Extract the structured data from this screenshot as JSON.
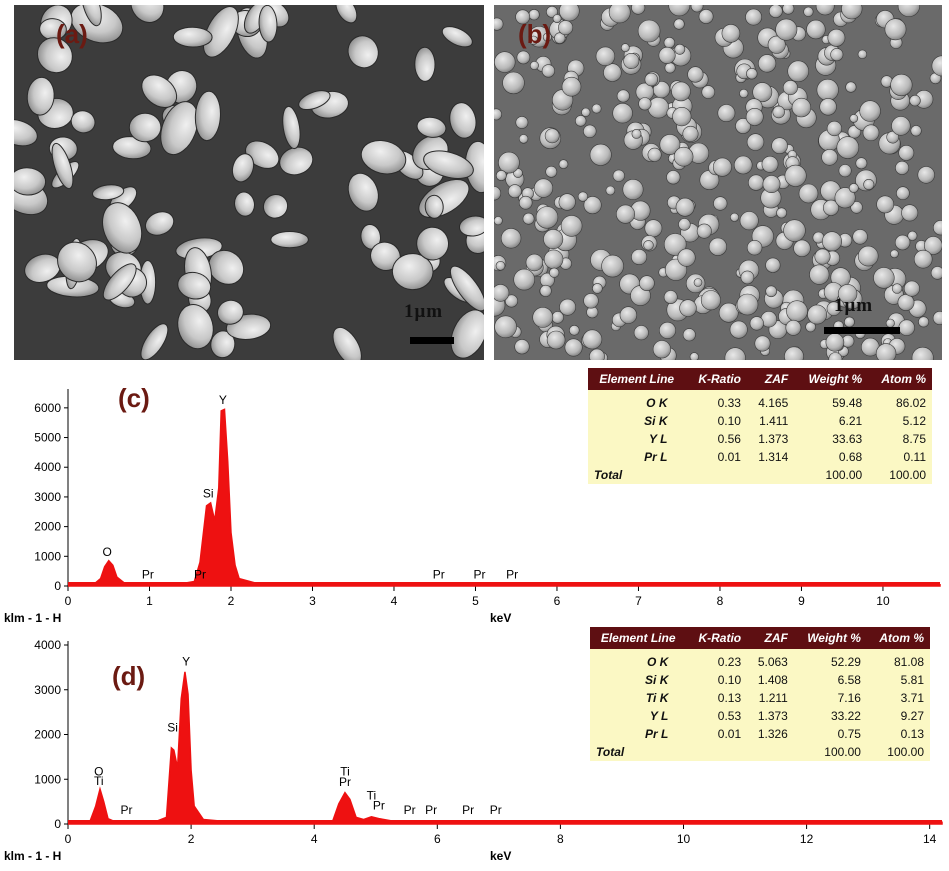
{
  "images": {
    "a": {
      "label": "(a)",
      "scalebar": "1μm"
    },
    "b": {
      "label": "(b)",
      "scalebar": "1μm"
    }
  },
  "colors": {
    "spectrum": "#ee1111",
    "panel_label": "#6b1a12",
    "table_header": "#5e0f12",
    "table_body": "#fbf8c4"
  },
  "chart_data": [
    {
      "type": "area",
      "panel": "(c)",
      "xlabel": "keV",
      "ylabel": "",
      "source_label": "klm - 1 - H",
      "xlim": [
        0,
        10.7
      ],
      "ylim": [
        0,
        6500
      ],
      "x_ticks": [
        0,
        1,
        2,
        3,
        4,
        5,
        6,
        7,
        8,
        9,
        10
      ],
      "y_ticks": [
        0,
        1000,
        2000,
        3000,
        4000,
        5000,
        6000
      ],
      "series": [
        {
          "values": [
            [
              0,
              0
            ],
            [
              0.3,
              20
            ],
            [
              0.4,
              250
            ],
            [
              0.45,
              650
            ],
            [
              0.5,
              850
            ],
            [
              0.55,
              700
            ],
            [
              0.6,
              300
            ],
            [
              0.7,
              80
            ],
            [
              0.85,
              30
            ],
            [
              1.0,
              40
            ],
            [
              1.2,
              50
            ],
            [
              1.4,
              80
            ],
            [
              1.55,
              150
            ],
            [
              1.62,
              800
            ],
            [
              1.7,
              2700
            ],
            [
              1.75,
              2800
            ],
            [
              1.8,
              2200
            ],
            [
              1.85,
              3300
            ],
            [
              1.88,
              5900
            ],
            [
              1.92,
              5950
            ],
            [
              1.96,
              4200
            ],
            [
              2.0,
              1800
            ],
            [
              2.05,
              700
            ],
            [
              2.1,
              250
            ],
            [
              2.3,
              100
            ],
            [
              2.6,
              60
            ],
            [
              3.0,
              40
            ],
            [
              4.0,
              40
            ],
            [
              5.0,
              40
            ],
            [
              6.0,
              40
            ],
            [
              7.0,
              40
            ],
            [
              8.0,
              40
            ],
            [
              9.0,
              40
            ],
            [
              10.0,
              40
            ],
            [
              10.7,
              40
            ]
          ]
        }
      ],
      "peak_labels": [
        {
          "text": "O",
          "x": 0.48,
          "y": 870
        },
        {
          "text": "Pr",
          "x": 0.98,
          "y": 120
        },
        {
          "text": "Pr",
          "x": 1.62,
          "y": 120
        },
        {
          "text": "Si",
          "x": 1.72,
          "y": 2850
        },
        {
          "text": "Y",
          "x": 1.9,
          "y": 6000
        },
        {
          "text": "Pr",
          "x": 4.55,
          "y": 120
        },
        {
          "text": "Pr",
          "x": 5.05,
          "y": 120
        },
        {
          "text": "Pr",
          "x": 5.45,
          "y": 120
        }
      ]
    },
    {
      "type": "area",
      "panel": "(d)",
      "xlabel": "keV",
      "ylabel": "",
      "source_label": "klm - 1 - H",
      "xlim": [
        0,
        14.2
      ],
      "ylim": [
        0,
        4000
      ],
      "x_ticks": [
        0,
        2,
        4,
        6,
        8,
        10,
        12,
        14
      ],
      "y_ticks": [
        0,
        1000,
        2000,
        3000,
        4000
      ],
      "series": [
        {
          "values": [
            [
              0,
              0
            ],
            [
              0.35,
              30
            ],
            [
              0.45,
              400
            ],
            [
              0.52,
              780
            ],
            [
              0.58,
              500
            ],
            [
              0.65,
              120
            ],
            [
              0.8,
              30
            ],
            [
              1.0,
              30
            ],
            [
              1.4,
              40
            ],
            [
              1.6,
              150
            ],
            [
              1.68,
              1700
            ],
            [
              1.72,
              1650
            ],
            [
              1.78,
              1250
            ],
            [
              1.84,
              2800
            ],
            [
              1.9,
              3400
            ],
            [
              1.95,
              2900
            ],
            [
              2.0,
              1200
            ],
            [
              2.05,
              400
            ],
            [
              2.2,
              100
            ],
            [
              2.6,
              50
            ],
            [
              3.5,
              40
            ],
            [
              4.3,
              60
            ],
            [
              4.4,
              450
            ],
            [
              4.5,
              700
            ],
            [
              4.58,
              550
            ],
            [
              4.68,
              150
            ],
            [
              4.8,
              100
            ],
            [
              4.93,
              160
            ],
            [
              5.05,
              120
            ],
            [
              5.3,
              60
            ],
            [
              6.0,
              50
            ],
            [
              7.0,
              40
            ],
            [
              8.0,
              40
            ],
            [
              10.0,
              40
            ],
            [
              12.0,
              40
            ],
            [
              14.2,
              40
            ]
          ]
        }
      ],
      "peak_labels": [
        {
          "text": "O",
          "x": 0.5,
          "y": 1000
        },
        {
          "text": "Ti",
          "x": 0.5,
          "y": 780
        },
        {
          "text": "Pr",
          "x": 0.95,
          "y": 130
        },
        {
          "text": "Si",
          "x": 1.7,
          "y": 1980
        },
        {
          "text": "Y",
          "x": 1.92,
          "y": 3450
        },
        {
          "text": "Ti",
          "x": 4.5,
          "y": 1000
        },
        {
          "text": "Pr",
          "x": 4.5,
          "y": 760
        },
        {
          "text": "Ti",
          "x": 4.93,
          "y": 460
        },
        {
          "text": "Pr",
          "x": 5.05,
          "y": 240
        },
        {
          "text": "Pr",
          "x": 5.55,
          "y": 130
        },
        {
          "text": "Pr",
          "x": 5.9,
          "y": 130
        },
        {
          "text": "Pr",
          "x": 6.5,
          "y": 130
        },
        {
          "text": "Pr",
          "x": 6.95,
          "y": 130
        }
      ]
    }
  ],
  "tables": {
    "c": {
      "headers": [
        "Element Line",
        "K-Ratio",
        "ZAF",
        "Weight %",
        "Atom %"
      ],
      "rows": [
        [
          "O K",
          "0.33",
          "4.165",
          "59.48",
          "86.02"
        ],
        [
          "Si K",
          "0.10",
          "1.411",
          "6.21",
          "5.12"
        ],
        [
          "Y L",
          "0.56",
          "1.373",
          "33.63",
          "8.75"
        ],
        [
          "Pr L",
          "0.01",
          "1.314",
          "0.68",
          "0.11"
        ]
      ],
      "total": [
        "Total",
        "",
        "",
        "100.00",
        "100.00"
      ]
    },
    "d": {
      "headers": [
        "Element Line",
        "K-Ratio",
        "ZAF",
        "Weight %",
        "Atom %"
      ],
      "rows": [
        [
          "O K",
          "0.23",
          "5.063",
          "52.29",
          "81.08"
        ],
        [
          "Si K",
          "0.10",
          "1.408",
          "6.58",
          "5.81"
        ],
        [
          "Ti K",
          "0.13",
          "1.211",
          "7.16",
          "3.71"
        ],
        [
          "Y L",
          "0.53",
          "1.373",
          "33.22",
          "9.27"
        ],
        [
          "Pr L",
          "0.01",
          "1.326",
          "0.75",
          "0.13"
        ]
      ],
      "total": [
        "Total",
        "",
        "",
        "100.00",
        "100.00"
      ]
    }
  }
}
